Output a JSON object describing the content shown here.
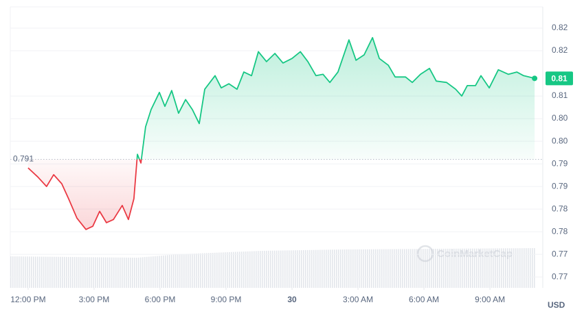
{
  "chart_data": {
    "type": "line",
    "x": [
      0,
      0.44,
      0.84,
      1.16,
      1.53,
      1.84,
      2.22,
      2.63,
      2.94,
      3.25,
      3.56,
      3.88,
      4.28,
      4.56,
      4.81,
      4.97,
      5.13,
      5.34,
      5.59,
      5.97,
      6.22,
      6.53,
      6.84,
      7.16,
      7.47,
      7.78,
      8.03,
      8.5,
      8.78,
      9.13,
      9.5,
      9.81,
      10.16,
      10.47,
      10.84,
      11.22,
      11.59,
      12.0,
      12.38,
      12.72,
      13.09,
      13.41,
      13.72,
      14.09,
      14.59,
      14.91,
      15.28,
      15.66,
      15.97,
      16.38,
      16.69,
      17.16,
      17.47,
      17.84,
      18.25,
      18.56,
      19.03,
      19.44,
      19.72,
      19.97,
      20.34,
      20.59,
      20.97,
      21.38,
      21.84,
      22.22,
      22.53,
      23.03
    ],
    "series": [
      {
        "values": [
          0.7891,
          0.7871,
          0.785,
          0.7876,
          0.7856,
          0.7823,
          0.778,
          0.7755,
          0.7762,
          0.7795,
          0.777,
          0.7777,
          0.7808,
          0.7777,
          0.7823,
          0.7921,
          0.7902,
          0.7982,
          0.802,
          0.8058,
          0.8027,
          0.8062,
          0.8012,
          0.8042,
          0.802,
          0.7989,
          0.8065,
          0.8095,
          0.8068,
          0.8077,
          0.8065,
          0.8103,
          0.8095,
          0.8148,
          0.8126,
          0.8144,
          0.8123,
          0.8133,
          0.8148,
          0.8126,
          0.8095,
          0.8098,
          0.808,
          0.8103,
          0.8174,
          0.8129,
          0.8141,
          0.8179,
          0.8133,
          0.8118,
          0.8092,
          0.8092,
          0.808,
          0.8098,
          0.8111,
          0.8083,
          0.808,
          0.8065,
          0.805,
          0.8073,
          0.8073,
          0.8095,
          0.8068,
          0.8108,
          0.8098,
          0.8103,
          0.8095,
          0.8089
        ]
      }
    ],
    "up_color": "#16c784",
    "down_color": "#ea3943",
    "baseline": {
      "value": 0.791,
      "label": "0.791"
    },
    "current_price": {
      "value": 0.8089,
      "label": "0.81"
    },
    "xlim": [
      -0.81,
      23.09
    ],
    "ylim": [
      0.7626,
      0.8247
    ],
    "xticks": [
      {
        "value": 0,
        "label": "12:00 PM"
      },
      {
        "value": 3,
        "label": "3:00 PM"
      },
      {
        "value": 6,
        "label": "6:00 PM"
      },
      {
        "value": 9,
        "label": "9:00 PM"
      },
      {
        "value": 12,
        "label": "30"
      },
      {
        "value": 15,
        "label": "3:00 AM"
      },
      {
        "value": 18,
        "label": "6:00 AM"
      },
      {
        "value": 21,
        "label": "9:00 AM"
      }
    ],
    "yticks": [
      {
        "value": 0.82,
        "label": "0.82"
      },
      {
        "value": 0.815,
        "label": "0.82"
      },
      {
        "value": 0.805,
        "label": "0.81"
      },
      {
        "value": 0.8,
        "label": "0.80"
      },
      {
        "value": 0.795,
        "label": "0.80"
      },
      {
        "value": 0.79,
        "label": "0.79"
      },
      {
        "value": 0.785,
        "label": "0.79"
      },
      {
        "value": 0.78,
        "label": "0.78"
      },
      {
        "value": 0.775,
        "label": "0.78"
      },
      {
        "value": 0.77,
        "label": "0.77"
      },
      {
        "value": 0.765,
        "label": "0.77"
      }
    ],
    "y_unit": "USD",
    "watermark": "CoinMarketCap"
  }
}
